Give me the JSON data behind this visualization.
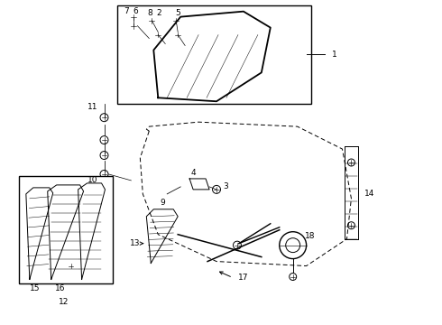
{
  "bg_color": "#ffffff",
  "line_color": "#000000",
  "fig_w": 4.9,
  "fig_h": 3.6,
  "dpi": 100,
  "font_size": 6.5
}
